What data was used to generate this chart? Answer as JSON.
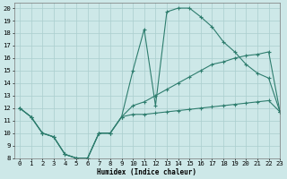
{
  "line1_x": [
    0,
    1,
    2,
    3,
    4,
    5,
    6,
    7,
    8,
    9,
    10,
    11,
    12,
    13,
    14,
    15,
    16,
    17,
    18,
    19,
    20,
    21,
    22,
    23
  ],
  "line1_y": [
    12,
    11.3,
    10,
    9.7,
    8.3,
    8.0,
    8.0,
    10,
    10,
    11.3,
    15,
    18.3,
    12.2,
    19.7,
    20,
    20,
    19.3,
    18.5,
    17.3,
    16.5,
    15.5,
    14.8,
    14.4,
    11.7
  ],
  "line2_x": [
    0,
    1,
    2,
    3,
    4,
    5,
    6,
    7,
    8,
    9,
    10,
    11,
    12,
    13,
    14,
    15,
    16,
    17,
    18,
    19,
    20,
    21,
    22,
    23
  ],
  "line2_y": [
    12,
    11.3,
    10.0,
    9.7,
    8.3,
    8.0,
    8.0,
    10,
    10.0,
    11.3,
    12.2,
    12.5,
    13.0,
    13.5,
    14.0,
    14.5,
    15.0,
    15.5,
    15.7,
    16.0,
    16.2,
    16.3,
    16.5,
    11.7
  ],
  "line3_x": [
    0,
    1,
    2,
    3,
    4,
    5,
    6,
    7,
    8,
    9,
    10,
    11,
    12,
    13,
    14,
    15,
    16,
    17,
    18,
    19,
    20,
    21,
    22,
    23
  ],
  "line3_y": [
    12,
    11.3,
    10.0,
    9.7,
    8.3,
    8.0,
    8.0,
    10,
    10.0,
    11.3,
    11.5,
    11.5,
    11.6,
    11.7,
    11.8,
    11.9,
    12.0,
    12.1,
    12.2,
    12.3,
    12.4,
    12.5,
    12.6,
    11.7
  ],
  "line_color": "#2e7d6e",
  "bg_color": "#cde8e8",
  "grid_color": "#aacece",
  "xlabel": "Humidex (Indice chaleur)",
  "xlim": [
    -0.5,
    23
  ],
  "ylim": [
    8,
    20.4
  ],
  "yticks": [
    8,
    9,
    10,
    11,
    12,
    13,
    14,
    15,
    16,
    17,
    18,
    19,
    20
  ],
  "xticks": [
    0,
    1,
    2,
    3,
    4,
    5,
    6,
    7,
    8,
    9,
    10,
    11,
    12,
    13,
    14,
    15,
    16,
    17,
    18,
    19,
    20,
    21,
    22,
    23
  ]
}
